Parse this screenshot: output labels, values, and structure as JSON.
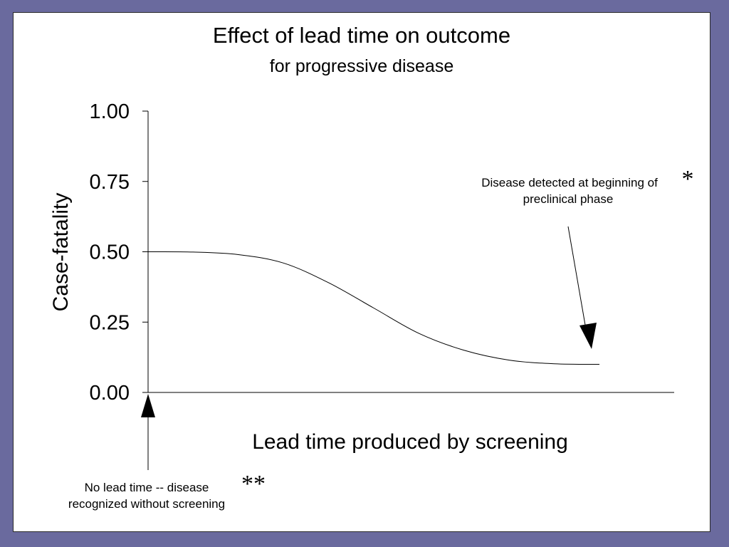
{
  "colors": {
    "background": "#6a6a9e",
    "panel": "#ffffff",
    "ink": "#000000"
  },
  "chart_data": {
    "type": "line",
    "title": "Effect of lead time on outcome",
    "subtitle": "for progressive disease",
    "xlabel": "Lead time produced by screening",
    "ylabel": "Case-fatality",
    "ylim": [
      0,
      1
    ],
    "xlim": [
      0,
      1
    ],
    "y_ticks": [
      "1.00",
      "0.75",
      "0.50",
      "0.25",
      "0.00"
    ],
    "x_ticks": [],
    "grid": false,
    "series": [
      {
        "x": [
          0.0,
          0.1,
          0.2,
          0.3,
          0.4,
          0.5,
          0.6,
          0.7,
          0.8,
          0.9,
          1.0
        ],
        "y": [
          0.5,
          0.499,
          0.49,
          0.46,
          0.39,
          0.3,
          0.21,
          0.15,
          0.115,
          0.102,
          0.1
        ]
      }
    ],
    "annotations": [
      {
        "id": "end",
        "lines": [
          "Disease detected at beginning of",
          "preclinical phase"
        ],
        "marker": "*"
      },
      {
        "id": "start",
        "lines": [
          "No lead time -- disease",
          "recognized without screening"
        ],
        "marker": "**"
      }
    ]
  }
}
